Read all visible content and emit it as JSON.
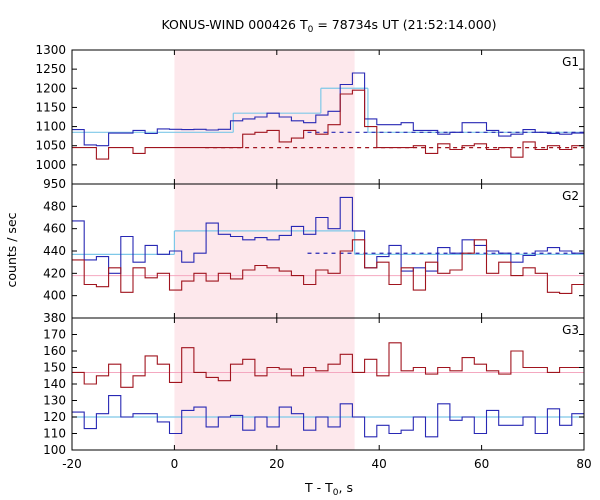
{
  "chart_data": {
    "type": "line",
    "title_main": "KONUS-WIND 000426 T",
    "title_sub": "0",
    "title_rest": " = 78734s UT (21:52:14.000)",
    "ylabel": "counts / sec",
    "xlabel_main": "T - T",
    "xlabel_sub": "0",
    "xlabel_rest": ", s",
    "xlim": [
      -20,
      80
    ],
    "x_ticks": [
      "-20",
      "0",
      "20",
      "40",
      "60",
      "80"
    ],
    "x_tick_values": [
      -20,
      0,
      20,
      40,
      60,
      80
    ],
    "shaded_interval": [
      0,
      35.2
    ],
    "colors": {
      "shade": "#fde8ec",
      "red": "#a0141e",
      "blue": "#2828b4",
      "cyan": "#7ec8e8",
      "pink": "#f4a8c0"
    },
    "panels": [
      {
        "label": "G1",
        "ylim": [
          950,
          1300
        ],
        "y_ticks": [
          "950",
          "1000",
          "1050",
          "1100",
          "1150",
          "1200",
          "1250",
          "1300"
        ],
        "y_tick_values": [
          950,
          1000,
          1050,
          1100,
          1150,
          1200,
          1250,
          1300
        ],
        "series_blue": [
          1092,
          1052,
          1050,
          1083,
          1083,
          1090,
          1082,
          1094,
          1093,
          1092,
          1093,
          1091,
          1093,
          1115,
          1120,
          1125,
          1135,
          1125,
          1115,
          1110,
          1130,
          1140,
          1210,
          1240,
          1120,
          1105,
          1105,
          1110,
          1090,
          1090,
          1080,
          1085,
          1110,
          1110,
          1090,
          1075,
          1080,
          1092,
          1085,
          1082,
          1080,
          1083
        ],
        "series_red": [
          1045,
          1045,
          1015,
          1045,
          1045,
          1030,
          1045,
          1045,
          1045,
          1045,
          1045,
          1045,
          1045,
          1045,
          1080,
          1085,
          1090,
          1060,
          1070,
          1090,
          1080,
          1105,
          1185,
          1195,
          1100,
          1045,
          1045,
          1045,
          1050,
          1030,
          1055,
          1040,
          1050,
          1055,
          1040,
          1045,
          1020,
          1060,
          1040,
          1050,
          1040,
          1050
        ],
        "bg_blue": {
          "start": 26,
          "end": 80,
          "value": 1085
        },
        "bg_red": {
          "start": 6,
          "end": 80,
          "value": 1045
        },
        "cyan_steps": [
          {
            "x": [
              -20,
              11.5
            ],
            "y": 1085
          },
          {
            "x": [
              11.5,
              28.6
            ],
            "y": 1135
          },
          {
            "x": [
              28.6,
              37.8
            ],
            "y": 1200
          },
          {
            "x": [
              37.8,
              80
            ],
            "y": 1085
          }
        ]
      },
      {
        "label": "G2",
        "ylim": [
          380,
          500
        ],
        "y_ticks": [
          "380",
          "400",
          "420",
          "440",
          "460",
          "480"
        ],
        "y_tick_values": [
          380,
          400,
          420,
          440,
          460,
          480
        ],
        "series_blue": [
          467,
          432,
          435,
          420,
          453,
          430,
          445,
          437,
          440,
          430,
          438,
          465,
          455,
          453,
          450,
          452,
          450,
          454,
          462,
          455,
          470,
          460,
          488,
          458,
          425,
          435,
          445,
          422,
          425,
          422,
          443,
          438,
          450,
          445,
          440,
          438,
          430,
          436,
          440,
          443,
          440,
          438
        ],
        "series_red": [
          432,
          410,
          408,
          425,
          403,
          425,
          416,
          420,
          405,
          413,
          420,
          413,
          420,
          415,
          423,
          427,
          425,
          422,
          418,
          410,
          423,
          420,
          440,
          450,
          425,
          430,
          410,
          425,
          405,
          430,
          420,
          423,
          438,
          450,
          420,
          430,
          418,
          425,
          420,
          403,
          402,
          410
        ],
        "bg_blue": {
          "start": 26,
          "end": 80,
          "value": 438
        },
        "bg_red": {
          "start": 0,
          "end": 0,
          "value": 418
        },
        "cyan_steps": [
          {
            "x": [
              -20,
              0
            ],
            "y": 437
          },
          {
            "x": [
              0,
              35.2
            ],
            "y": 458
          },
          {
            "x": [
              35.2,
              80
            ],
            "y": 437
          }
        ],
        "pink_value": 418
      },
      {
        "label": "G3",
        "ylim": [
          100,
          180
        ],
        "y_ticks": [
          "100",
          "110",
          "120",
          "130",
          "140",
          "150",
          "160",
          "170"
        ],
        "y_tick_values": [
          100,
          110,
          120,
          130,
          140,
          150,
          160,
          170
        ],
        "series_blue": [
          123,
          113,
          122,
          133,
          120,
          122,
          122,
          117,
          110,
          124,
          126,
          114,
          120,
          121,
          112,
          120,
          114,
          126,
          122,
          112,
          120,
          114,
          128,
          120,
          108,
          115,
          110,
          112,
          120,
          108,
          128,
          118,
          120,
          110,
          124,
          115,
          115,
          120,
          110,
          125,
          115,
          122
        ],
        "series_red": [
          147,
          140,
          145,
          152,
          138,
          145,
          157,
          152,
          141,
          162,
          147,
          144,
          142,
          152,
          155,
          145,
          150,
          149,
          145,
          150,
          148,
          152,
          158,
          147,
          155,
          145,
          165,
          148,
          150,
          146,
          150,
          148,
          156,
          152,
          148,
          146,
          160,
          150,
          150,
          147,
          150,
          150
        ],
        "bg_blue": {
          "start": 0,
          "end": 0,
          "value": 120
        },
        "bg_red": {
          "start": 0,
          "end": 0,
          "value": 147
        },
        "cyan_steps": [
          {
            "x": [
              -20,
              80
            ],
            "y": 120
          }
        ],
        "pink_value": 147
      }
    ]
  }
}
